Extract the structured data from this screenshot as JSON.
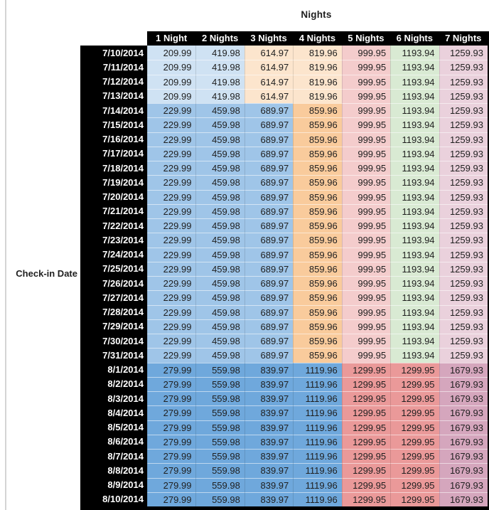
{
  "title": "Nights",
  "row_axis_label": "Check-in Date",
  "chart_data": {
    "type": "table",
    "title": "Nights",
    "row_axis_label": "Check-in Date",
    "columns": [
      "1 Night",
      "2 Nights",
      "3 Nights",
      "4 Nights",
      "5 Nights",
      "6 Nights",
      "7 Nights"
    ],
    "rows": [
      {
        "date": "7/10/2014",
        "band": "a",
        "values": [
          209.99,
          419.98,
          614.97,
          819.96,
          999.95,
          1193.94,
          1259.93
        ]
      },
      {
        "date": "7/11/2014",
        "band": "a",
        "values": [
          209.99,
          419.98,
          614.97,
          819.96,
          999.95,
          1193.94,
          1259.93
        ]
      },
      {
        "date": "7/12/2014",
        "band": "a",
        "values": [
          209.99,
          419.98,
          614.97,
          819.96,
          999.95,
          1193.94,
          1259.93
        ]
      },
      {
        "date": "7/13/2014",
        "band": "a",
        "values": [
          209.99,
          419.98,
          614.97,
          819.96,
          999.95,
          1193.94,
          1259.93
        ]
      },
      {
        "date": "7/14/2014",
        "band": "b",
        "values": [
          229.99,
          459.98,
          689.97,
          859.96,
          999.95,
          1193.94,
          1259.93
        ]
      },
      {
        "date": "7/15/2014",
        "band": "b",
        "values": [
          229.99,
          459.98,
          689.97,
          859.96,
          999.95,
          1193.94,
          1259.93
        ]
      },
      {
        "date": "7/16/2014",
        "band": "b",
        "values": [
          229.99,
          459.98,
          689.97,
          859.96,
          999.95,
          1193.94,
          1259.93
        ]
      },
      {
        "date": "7/17/2014",
        "band": "b",
        "values": [
          229.99,
          459.98,
          689.97,
          859.96,
          999.95,
          1193.94,
          1259.93
        ]
      },
      {
        "date": "7/18/2014",
        "band": "b",
        "values": [
          229.99,
          459.98,
          689.97,
          859.96,
          999.95,
          1193.94,
          1259.93
        ]
      },
      {
        "date": "7/19/2014",
        "band": "b",
        "values": [
          229.99,
          459.98,
          689.97,
          859.96,
          999.95,
          1193.94,
          1259.93
        ]
      },
      {
        "date": "7/20/2014",
        "band": "b",
        "values": [
          229.99,
          459.98,
          689.97,
          859.96,
          999.95,
          1193.94,
          1259.93
        ]
      },
      {
        "date": "7/21/2014",
        "band": "b",
        "values": [
          229.99,
          459.98,
          689.97,
          859.96,
          999.95,
          1193.94,
          1259.93
        ]
      },
      {
        "date": "7/22/2014",
        "band": "b",
        "values": [
          229.99,
          459.98,
          689.97,
          859.96,
          999.95,
          1193.94,
          1259.93
        ]
      },
      {
        "date": "7/23/2014",
        "band": "b",
        "values": [
          229.99,
          459.98,
          689.97,
          859.96,
          999.95,
          1193.94,
          1259.93
        ]
      },
      {
        "date": "7/24/2014",
        "band": "b",
        "values": [
          229.99,
          459.98,
          689.97,
          859.96,
          999.95,
          1193.94,
          1259.93
        ]
      },
      {
        "date": "7/25/2014",
        "band": "b",
        "values": [
          229.99,
          459.98,
          689.97,
          859.96,
          999.95,
          1193.94,
          1259.93
        ]
      },
      {
        "date": "7/26/2014",
        "band": "b",
        "values": [
          229.99,
          459.98,
          689.97,
          859.96,
          999.95,
          1193.94,
          1259.93
        ]
      },
      {
        "date": "7/27/2014",
        "band": "b",
        "values": [
          229.99,
          459.98,
          689.97,
          859.96,
          999.95,
          1193.94,
          1259.93
        ]
      },
      {
        "date": "7/28/2014",
        "band": "b",
        "values": [
          229.99,
          459.98,
          689.97,
          859.96,
          999.95,
          1193.94,
          1259.93
        ]
      },
      {
        "date": "7/29/2014",
        "band": "b",
        "values": [
          229.99,
          459.98,
          689.97,
          859.96,
          999.95,
          1193.94,
          1259.93
        ]
      },
      {
        "date": "7/30/2014",
        "band": "b",
        "values": [
          229.99,
          459.98,
          689.97,
          859.96,
          999.95,
          1193.94,
          1259.93
        ]
      },
      {
        "date": "7/31/2014",
        "band": "b",
        "values": [
          229.99,
          459.98,
          689.97,
          859.96,
          999.95,
          1193.94,
          1259.93
        ]
      },
      {
        "date": "8/1/2014",
        "band": "c",
        "values": [
          279.99,
          559.98,
          839.97,
          1119.96,
          1299.95,
          1299.95,
          1679.93
        ]
      },
      {
        "date": "8/2/2014",
        "band": "c",
        "values": [
          279.99,
          559.98,
          839.97,
          1119.96,
          1299.95,
          1299.95,
          1679.93
        ]
      },
      {
        "date": "8/3/2014",
        "band": "c",
        "values": [
          279.99,
          559.98,
          839.97,
          1119.96,
          1299.95,
          1299.95,
          1679.93
        ]
      },
      {
        "date": "8/4/2014",
        "band": "c",
        "values": [
          279.99,
          559.98,
          839.97,
          1119.96,
          1299.95,
          1299.95,
          1679.93
        ]
      },
      {
        "date": "8/5/2014",
        "band": "c",
        "values": [
          279.99,
          559.98,
          839.97,
          1119.96,
          1299.95,
          1299.95,
          1679.93
        ]
      },
      {
        "date": "8/6/2014",
        "band": "c",
        "values": [
          279.99,
          559.98,
          839.97,
          1119.96,
          1299.95,
          1299.95,
          1679.93
        ]
      },
      {
        "date": "8/7/2014",
        "band": "c",
        "values": [
          279.99,
          559.98,
          839.97,
          1119.96,
          1299.95,
          1299.95,
          1679.93
        ]
      },
      {
        "date": "8/8/2014",
        "band": "c",
        "values": [
          279.99,
          559.98,
          839.97,
          1119.96,
          1299.95,
          1299.95,
          1679.93
        ]
      },
      {
        "date": "8/9/2014",
        "band": "c",
        "values": [
          279.99,
          559.98,
          839.97,
          1119.96,
          1299.95,
          1299.95,
          1679.93
        ]
      },
      {
        "date": "8/10/2014",
        "band": "c",
        "values": [
          279.99,
          559.98,
          839.97,
          1119.96,
          1299.95,
          1299.95,
          1679.93
        ]
      }
    ]
  },
  "style": {
    "header_bg": "#000000",
    "header_text": "#ffffff",
    "value_text": "#1f1f1f",
    "gridline": "#d4d4d4",
    "band_colors": {
      "a": [
        "#cfe2f3",
        "#cfe2f3",
        "#fce5cd",
        "#fce5cd",
        "#f4cccc",
        "#d9ead3",
        "#ead1dc"
      ],
      "b": [
        "#9fc5e8",
        "#9fc5e8",
        "#9fc5e8",
        "#f9cb9c",
        "#f4cccc",
        "#d9ead3",
        "#ead1dc"
      ],
      "c": [
        "#6fa8dc",
        "#6fa8dc",
        "#6fa8dc",
        "#6fa8dc",
        "#ea9999",
        "#ea9999",
        "#d5a6bd"
      ]
    }
  }
}
